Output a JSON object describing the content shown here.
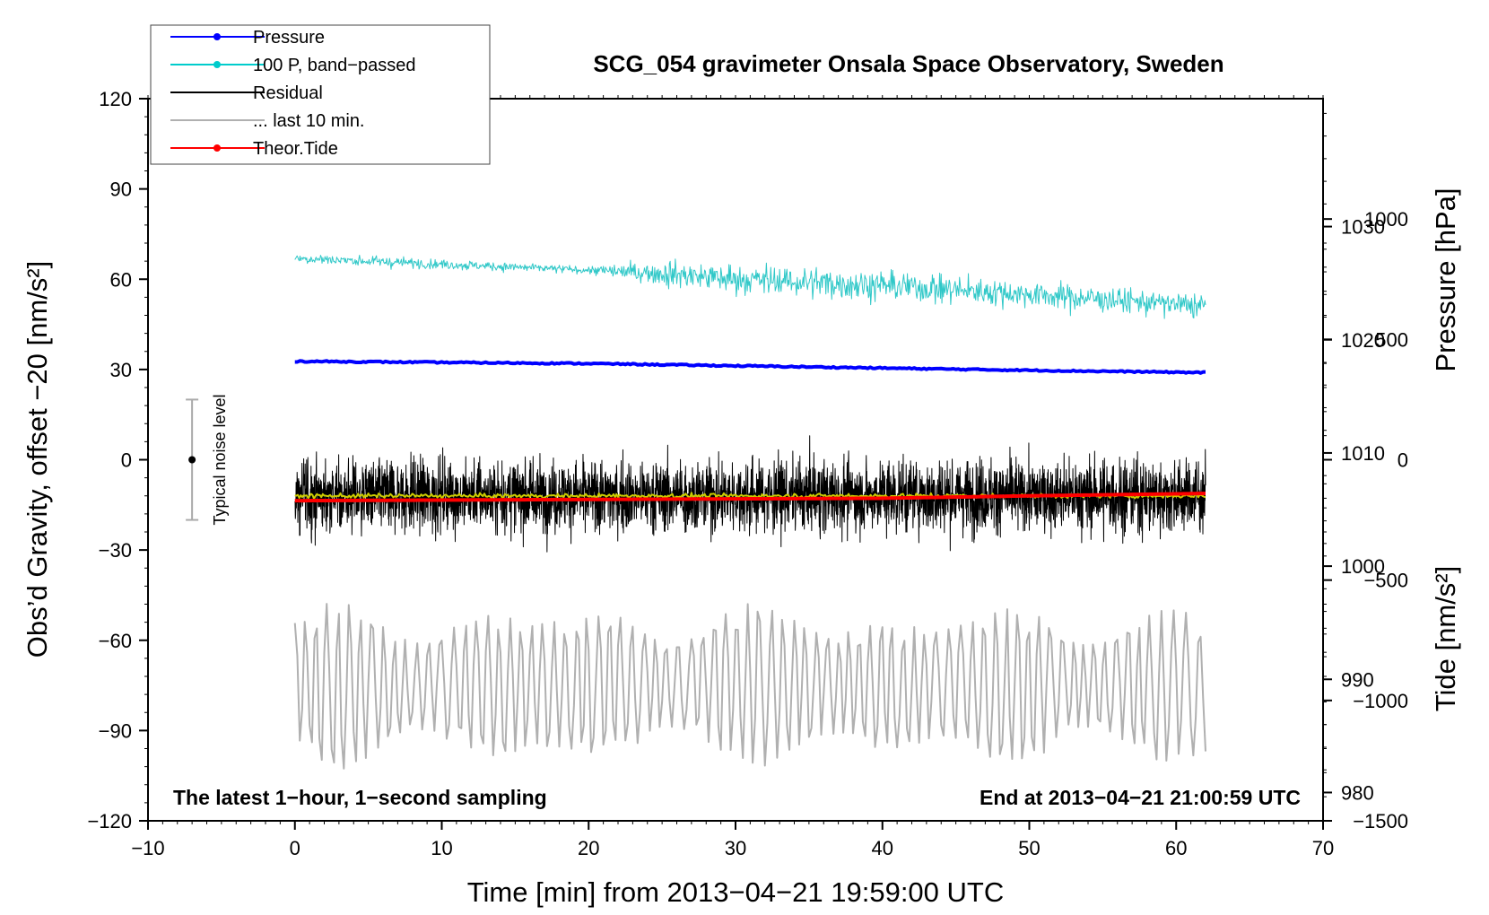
{
  "chart_data": {
    "type": "line",
    "title": "SCG_054 gravimeter Onsala Space Observatory, Sweden",
    "xlabel": "Time [min] from 2013−04−21 19:59:00 UTC",
    "ylabel_left": "Obs’d Gravity, offset −20 [nm/s²]",
    "ylabel_pressure": "Pressure [hPa]",
    "ylabel_tide": "Tide [nm/s²]",
    "xlim": [
      -10,
      70
    ],
    "ylim_left": [
      -120,
      120
    ],
    "ylim_pressure": [
      977.5,
      1041.3
    ],
    "ylim_tide": [
      -1500,
      1500
    ],
    "x_ticks": [
      "−10",
      "0",
      "10",
      "20",
      "30",
      "40",
      "50",
      "60",
      "70"
    ],
    "y_ticks_left": [
      "120",
      "90",
      "60",
      "30",
      "0",
      "−30",
      "−60",
      "−90",
      "−120"
    ],
    "y_ticks_pressure": [
      "1030",
      "1020",
      "1010",
      "1000",
      "990",
      "980"
    ],
    "y_ticks_tide": [
      "1000",
      "500",
      "0",
      "−500",
      "−1000",
      "−1500"
    ],
    "note_left": "The latest 1−hour, 1−second sampling",
    "note_right": "End at 2013−04−21 21:00:59 UTC",
    "noise_label": "Typical noise level",
    "noise_bar": {
      "x": -7,
      "center": 0,
      "low": -20,
      "high": 20
    },
    "legend": [
      {
        "label": "Pressure",
        "color": "#0000ff",
        "marker": true
      },
      {
        "label": "100 P, band−passed",
        "color": "#00cccc",
        "marker": true
      },
      {
        "label": "Residual",
        "color": "#000000",
        "marker": false
      },
      {
        "label": "... last 10 min.",
        "color": "#b0b0b0",
        "marker": false
      },
      {
        "label": "Theor.Tide",
        "color": "#ff0000",
        "marker": true
      }
    ],
    "series": [
      {
        "name": "Pressure",
        "axis": "pressure",
        "color": "#0000ff",
        "x": [
          0,
          10,
          20,
          30,
          40,
          50,
          62
        ],
        "values": [
          1018.1,
          1018.0,
          1017.9,
          1017.7,
          1017.5,
          1017.3,
          1017.1
        ]
      },
      {
        "name": "100 P, band−passed",
        "axis": "left",
        "color": "#30c8c8",
        "x": [
          0,
          10,
          20,
          25,
          30,
          40,
          50,
          62
        ],
        "values": [
          67,
          65,
          63,
          62,
          60,
          58,
          55,
          51
        ],
        "amplitude": [
          2,
          2,
          1.5,
          5,
          6,
          6,
          5,
          5
        ]
      },
      {
        "name": "Residual",
        "axis": "left",
        "color": "#000000",
        "x": [
          0,
          62
        ],
        "values": [
          -12,
          -12
        ],
        "amplitude": [
          18,
          18
        ]
      },
      {
        "name": "Residual (smoothed)",
        "axis": "left",
        "color": "#cccc00",
        "x": [
          0,
          62
        ],
        "values": [
          -12,
          -12
        ]
      },
      {
        "name": "... last 10 min.",
        "axis": "left",
        "color": "#b0b0b0",
        "x": [
          0,
          62
        ],
        "values": [
          -75,
          -75
        ],
        "amplitude": [
          20,
          20
        ]
      },
      {
        "name": "Theor.Tide",
        "axis": "tide",
        "color": "#ff0000",
        "x": [
          0,
          20,
          40,
          50,
          62
        ],
        "values": [
          -170,
          -165,
          -160,
          -150,
          -140
        ]
      }
    ]
  }
}
